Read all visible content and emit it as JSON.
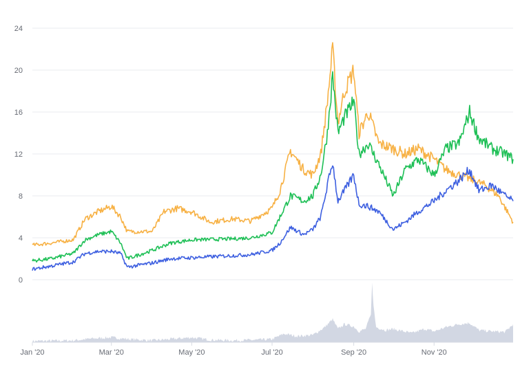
{
  "chart_data": {
    "type": "line",
    "title": "",
    "xlabel": "",
    "ylabel": "",
    "x_range": [
      "2020-01-01",
      "2020-12-31"
    ],
    "ylim": [
      0,
      24
    ],
    "y_ticks": [
      0,
      4,
      8,
      12,
      16,
      20,
      24
    ],
    "y_tick_labels": [
      "0",
      "4",
      "8",
      "12",
      "16",
      "20",
      "24"
    ],
    "x_ticks": [
      "2020-01-01",
      "2020-03-01",
      "2020-05-01",
      "2020-07-01",
      "2020-09-01",
      "2020-11-01"
    ],
    "x_tick_labels": [
      "Jan '20",
      "Mar '20",
      "May '20",
      "Jul '20",
      "Sep '20",
      "Nov '20"
    ],
    "grid": true,
    "series": [
      {
        "color": "#f7b144",
        "points": [
          [
            "2020-01-01",
            3.3
          ],
          [
            "2020-01-15",
            3.5
          ],
          [
            "2020-02-01",
            3.8
          ],
          [
            "2020-02-10",
            5.8
          ],
          [
            "2020-02-20",
            6.5
          ],
          [
            "2020-03-01",
            7.0
          ],
          [
            "2020-03-08",
            6.0
          ],
          [
            "2020-03-13",
            4.6
          ],
          [
            "2020-04-01",
            4.6
          ],
          [
            "2020-04-10",
            6.5
          ],
          [
            "2020-04-20",
            6.8
          ],
          [
            "2020-05-01",
            6.5
          ],
          [
            "2020-05-15",
            5.5
          ],
          [
            "2020-06-01",
            5.8
          ],
          [
            "2020-06-15",
            5.6
          ],
          [
            "2020-07-01",
            6.8
          ],
          [
            "2020-07-07",
            8.5
          ],
          [
            "2020-07-15",
            12.3
          ],
          [
            "2020-07-25",
            10.5
          ],
          [
            "2020-08-01",
            10.0
          ],
          [
            "2020-08-07",
            12.0
          ],
          [
            "2020-08-12",
            17.0
          ],
          [
            "2020-08-16",
            22.0
          ],
          [
            "2020-08-20",
            15.0
          ],
          [
            "2020-08-25",
            18.0
          ],
          [
            "2020-09-01",
            20.0
          ],
          [
            "2020-09-05",
            14.0
          ],
          [
            "2020-09-12",
            16.0
          ],
          [
            "2020-09-20",
            13.0
          ],
          [
            "2020-10-01",
            12.5
          ],
          [
            "2020-10-10",
            12.0
          ],
          [
            "2020-10-20",
            12.5
          ],
          [
            "2020-11-01",
            11.5
          ],
          [
            "2020-11-10",
            10.5
          ],
          [
            "2020-11-20",
            10.0
          ],
          [
            "2020-12-01",
            9.5
          ],
          [
            "2020-12-10",
            9.0
          ],
          [
            "2020-12-20",
            8.0
          ],
          [
            "2020-12-31",
            5.5
          ]
        ]
      },
      {
        "color": "#1dbf55",
        "points": [
          [
            "2020-01-01",
            1.8
          ],
          [
            "2020-01-15",
            2.0
          ],
          [
            "2020-02-01",
            2.5
          ],
          [
            "2020-02-10",
            3.8
          ],
          [
            "2020-02-20",
            4.3
          ],
          [
            "2020-03-01",
            4.6
          ],
          [
            "2020-03-08",
            3.5
          ],
          [
            "2020-03-13",
            2.0
          ],
          [
            "2020-04-01",
            2.8
          ],
          [
            "2020-04-15",
            3.5
          ],
          [
            "2020-05-01",
            3.8
          ],
          [
            "2020-06-01",
            3.9
          ],
          [
            "2020-06-15",
            4.0
          ],
          [
            "2020-07-01",
            4.5
          ],
          [
            "2020-07-07",
            6.0
          ],
          [
            "2020-07-15",
            8.0
          ],
          [
            "2020-07-25",
            7.5
          ],
          [
            "2020-08-01",
            8.0
          ],
          [
            "2020-08-07",
            10.0
          ],
          [
            "2020-08-12",
            14.0
          ],
          [
            "2020-08-16",
            19.5
          ],
          [
            "2020-08-20",
            14.0
          ],
          [
            "2020-08-25",
            15.5
          ],
          [
            "2020-09-01",
            17.0
          ],
          [
            "2020-09-05",
            12.0
          ],
          [
            "2020-09-12",
            13.0
          ],
          [
            "2020-09-20",
            11.0
          ],
          [
            "2020-10-01",
            8.0
          ],
          [
            "2020-10-10",
            10.5
          ],
          [
            "2020-10-20",
            11.5
          ],
          [
            "2020-11-01",
            10.0
          ],
          [
            "2020-11-10",
            12.5
          ],
          [
            "2020-11-20",
            13.0
          ],
          [
            "2020-11-28",
            16.0
          ],
          [
            "2020-12-05",
            13.5
          ],
          [
            "2020-12-15",
            12.5
          ],
          [
            "2020-12-25",
            12.0
          ],
          [
            "2020-12-31",
            11.5
          ]
        ]
      },
      {
        "color": "#3d5fe0",
        "points": [
          [
            "2020-01-01",
            1.0
          ],
          [
            "2020-01-15",
            1.3
          ],
          [
            "2020-02-01",
            1.7
          ],
          [
            "2020-02-10",
            2.5
          ],
          [
            "2020-02-20",
            2.7
          ],
          [
            "2020-03-01",
            2.7
          ],
          [
            "2020-03-08",
            2.5
          ],
          [
            "2020-03-13",
            1.2
          ],
          [
            "2020-04-01",
            1.6
          ],
          [
            "2020-04-15",
            2.0
          ],
          [
            "2020-05-01",
            2.1
          ],
          [
            "2020-06-01",
            2.3
          ],
          [
            "2020-06-15",
            2.4
          ],
          [
            "2020-07-01",
            2.8
          ],
          [
            "2020-07-07",
            3.5
          ],
          [
            "2020-07-15",
            5.0
          ],
          [
            "2020-07-25",
            4.3
          ],
          [
            "2020-08-01",
            4.8
          ],
          [
            "2020-08-07",
            6.0
          ],
          [
            "2020-08-12",
            9.0
          ],
          [
            "2020-08-16",
            11.2
          ],
          [
            "2020-08-20",
            7.5
          ],
          [
            "2020-08-25",
            8.5
          ],
          [
            "2020-09-01",
            10.0
          ],
          [
            "2020-09-05",
            7.2
          ],
          [
            "2020-09-12",
            7.0
          ],
          [
            "2020-09-20",
            6.5
          ],
          [
            "2020-10-01",
            4.8
          ],
          [
            "2020-10-10",
            5.5
          ],
          [
            "2020-10-20",
            6.5
          ],
          [
            "2020-11-01",
            7.5
          ],
          [
            "2020-11-10",
            8.5
          ],
          [
            "2020-11-20",
            9.5
          ],
          [
            "2020-11-28",
            10.5
          ],
          [
            "2020-12-05",
            8.5
          ],
          [
            "2020-12-15",
            9.0
          ],
          [
            "2020-12-25",
            8.0
          ],
          [
            "2020-12-31",
            7.5
          ]
        ]
      }
    ],
    "volume": {
      "color": "#cdd3e0",
      "points": [
        [
          "2020-01-01",
          0.02
        ],
        [
          "2020-02-01",
          0.03
        ],
        [
          "2020-02-15",
          0.06
        ],
        [
          "2020-03-01",
          0.08
        ],
        [
          "2020-03-15",
          0.05
        ],
        [
          "2020-04-01",
          0.03
        ],
        [
          "2020-04-20",
          0.06
        ],
        [
          "2020-05-01",
          0.08
        ],
        [
          "2020-05-15",
          0.04
        ],
        [
          "2020-06-01",
          0.03
        ],
        [
          "2020-06-20",
          0.04
        ],
        [
          "2020-07-01",
          0.05
        ],
        [
          "2020-07-10",
          0.14
        ],
        [
          "2020-07-20",
          0.1
        ],
        [
          "2020-08-01",
          0.12
        ],
        [
          "2020-08-10",
          0.25
        ],
        [
          "2020-08-16",
          0.38
        ],
        [
          "2020-08-20",
          0.22
        ],
        [
          "2020-08-25",
          0.3
        ],
        [
          "2020-09-01",
          0.26
        ],
        [
          "2020-09-05",
          0.18
        ],
        [
          "2020-09-10",
          0.22
        ],
        [
          "2020-09-14",
          0.45
        ],
        [
          "2020-09-15",
          1.0
        ],
        [
          "2020-09-16",
          0.6
        ],
        [
          "2020-09-18",
          0.25
        ],
        [
          "2020-09-25",
          0.2
        ],
        [
          "2020-10-01",
          0.22
        ],
        [
          "2020-10-15",
          0.15
        ],
        [
          "2020-10-25",
          0.22
        ],
        [
          "2020-11-01",
          0.18
        ],
        [
          "2020-11-10",
          0.25
        ],
        [
          "2020-11-20",
          0.3
        ],
        [
          "2020-11-28",
          0.32
        ],
        [
          "2020-12-05",
          0.2
        ],
        [
          "2020-12-15",
          0.18
        ],
        [
          "2020-12-25",
          0.17
        ],
        [
          "2020-12-31",
          0.3
        ]
      ]
    }
  }
}
